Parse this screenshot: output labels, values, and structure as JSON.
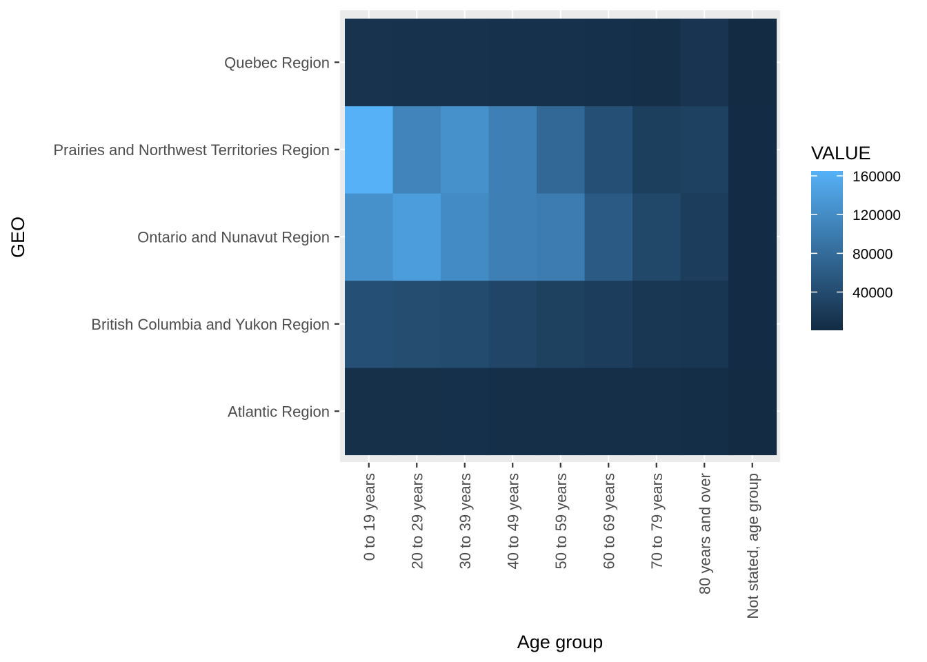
{
  "chart_data": {
    "type": "heatmap",
    "xlabel": "Age group",
    "ylabel": "GEO",
    "x_categories": [
      "0 to 19 years",
      "20 to 29 years",
      "30 to 39 years",
      "40 to 49 years",
      "50 to 59 years",
      "60 to 69 years",
      "70 to 79 years",
      "80 years and over",
      "Not stated, age group"
    ],
    "y_categories": [
      "Atlantic Region",
      "British Columbia and Yukon Region",
      "Ontario and Nunavut Region",
      "Prairies and Northwest Territories Region",
      "Quebec Region"
    ],
    "values": [
      [
        7000,
        7000,
        6500,
        6000,
        5500,
        5000,
        5000,
        4500,
        500
      ],
      [
        45000,
        42000,
        40000,
        33000,
        27000,
        22000,
        15000,
        13000,
        1000
      ],
      [
        125000,
        140000,
        118000,
        105000,
        100000,
        60000,
        35000,
        22000,
        1000
      ],
      [
        165000,
        110000,
        125000,
        105000,
        75000,
        45000,
        25000,
        28000,
        1000
      ],
      [
        10000,
        9500,
        9000,
        8000,
        7500,
        6500,
        6000,
        12000,
        1500
      ]
    ],
    "legend": {
      "title": "VALUE",
      "ticks": [
        "40000",
        "80000",
        "120000",
        "160000"
      ],
      "tick_values": [
        40000,
        80000,
        120000,
        160000
      ],
      "min": 500,
      "max": 165000,
      "low_color": "#132B43",
      "high_color": "#56B1F7",
      "placement": "right"
    },
    "panel_background": "#EBEBEB",
    "grid": true
  }
}
